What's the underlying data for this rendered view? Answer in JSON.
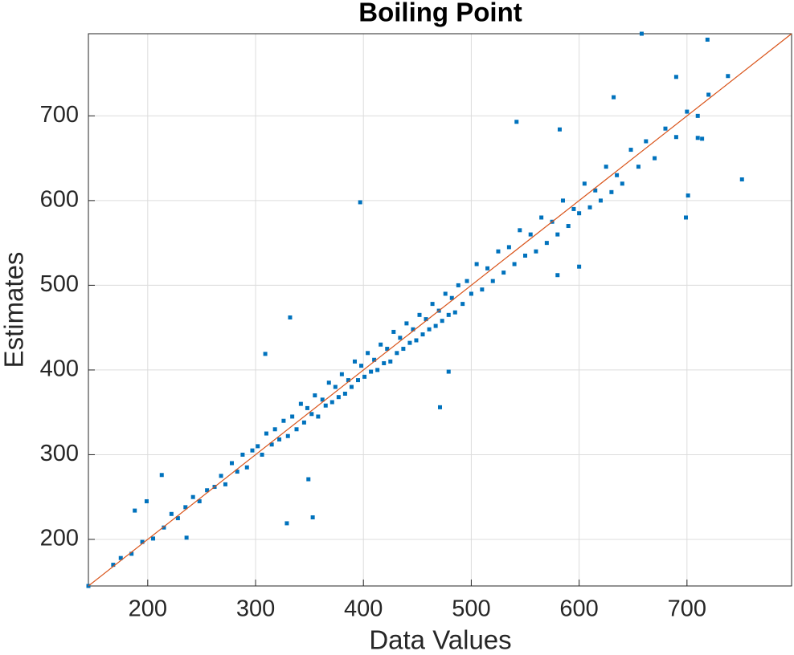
{
  "chart_data": {
    "type": "scatter",
    "title": "Boiling Point",
    "x_label": "Data Values",
    "y_label": "Estimates",
    "x": [
      175,
      185,
      195,
      205,
      215,
      222,
      228,
      235,
      242,
      248,
      255,
      262,
      268,
      272,
      278,
      283,
      288,
      292,
      297,
      302,
      306,
      310,
      315,
      318,
      322,
      326,
      330,
      334,
      338,
      342,
      345,
      348,
      352,
      355,
      358,
      362,
      365,
      368,
      371,
      374,
      377,
      380,
      383,
      386,
      389,
      392,
      395,
      398,
      401,
      404,
      407,
      410,
      413,
      416,
      419,
      422,
      425,
      428,
      431,
      434,
      437,
      440,
      443,
      446,
      449,
      452,
      455,
      458,
      461,
      464,
      467,
      470,
      473,
      476,
      479,
      482,
      485,
      488,
      492,
      496,
      500,
      505,
      510,
      515,
      520,
      525,
      530,
      535,
      540,
      545,
      550,
      555,
      560,
      565,
      570,
      575,
      580,
      585,
      590,
      595,
      600,
      605,
      610,
      615,
      620,
      625,
      630,
      635,
      640,
      648,
      655,
      662,
      670,
      680,
      690,
      700,
      710,
      720,
      145,
      168,
      188,
      199,
      213,
      236,
      329,
      353,
      349,
      309,
      332,
      397,
      471,
      479,
      542,
      582,
      632,
      658,
      690,
      719,
      738,
      751,
      701,
      699,
      710,
      714,
      600,
      580
    ],
    "values": [
      178,
      183,
      197,
      201,
      214,
      230,
      225,
      238,
      250,
      245,
      258,
      262,
      275,
      265,
      290,
      280,
      300,
      285,
      305,
      310,
      300,
      325,
      312,
      330,
      318,
      340,
      322,
      345,
      330,
      360,
      338,
      355,
      348,
      370,
      345,
      365,
      358,
      385,
      362,
      380,
      368,
      395,
      372,
      388,
      380,
      410,
      388,
      405,
      392,
      420,
      398,
      412,
      400,
      430,
      408,
      425,
      410,
      445,
      420,
      438,
      425,
      455,
      432,
      448,
      435,
      465,
      442,
      460,
      448,
      478,
      452,
      470,
      458,
      490,
      465,
      485,
      468,
      500,
      478,
      505,
      490,
      525,
      495,
      520,
      505,
      540,
      515,
      545,
      525,
      565,
      535,
      560,
      540,
      580,
      550,
      575,
      560,
      600,
      570,
      590,
      585,
      620,
      592,
      612,
      600,
      640,
      610,
      630,
      620,
      660,
      640,
      670,
      650,
      685,
      675,
      705,
      700,
      725,
      145,
      170,
      234,
      245,
      276,
      202,
      219,
      226,
      271,
      419,
      462,
      598,
      356,
      398,
      693,
      684,
      722,
      797,
      746,
      790,
      747,
      625,
      606,
      580,
      674,
      673,
      522,
      512
    ],
    "color": "#0072bd",
    "reference_line_color": "#d95319",
    "xlim": [
      145,
      797
    ],
    "ylim": [
      145,
      797
    ],
    "xticks": [
      200,
      300,
      400,
      500,
      600,
      700
    ],
    "yticks": [
      200,
      300,
      400,
      500,
      600,
      700
    ],
    "grid": true
  }
}
